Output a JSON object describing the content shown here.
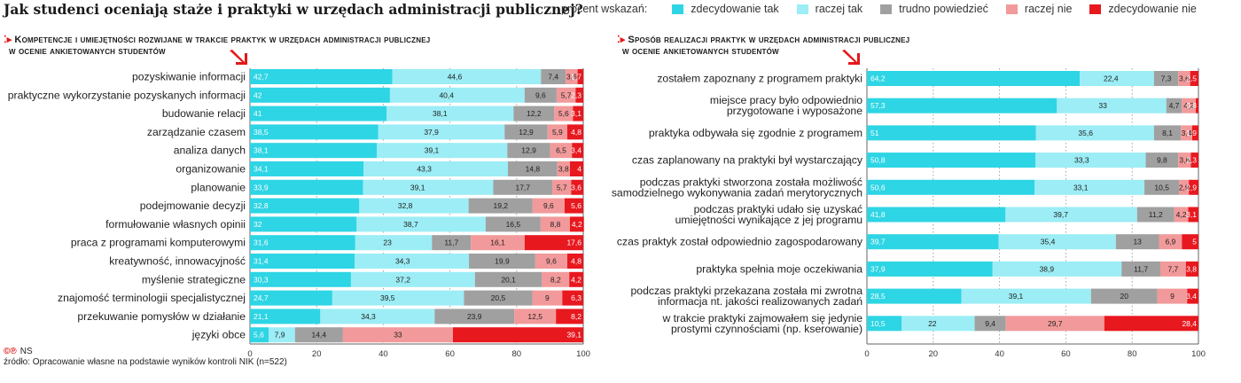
{
  "title": "Jak studenci oceniają staże i praktyki w urzędach administracji publicznej?",
  "legend": {
    "label": "procent wskazań:",
    "items": [
      {
        "name": "zdecydowanie tak",
        "color": "#2ed5e4"
      },
      {
        "name": "raczej tak",
        "color": "#9cedf5"
      },
      {
        "name": "trudno powiedzieć",
        "color": "#a0a0a0"
      },
      {
        "name": "raczej nie",
        "color": "#f29a9b"
      },
      {
        "name": "zdecydowanie nie",
        "color": "#e8181f"
      }
    ]
  },
  "footer": {
    "credit": "NS",
    "source": "źródło: Opracowanie własne na podstawie wyników kontroli NIK (n=522)"
  },
  "chart_data": [
    {
      "type": "bar",
      "stacked": true,
      "orientation": "horizontal",
      "title": "Kompetencje i umiejętności rozwijane w trakcie praktyk w urzędach administracji publicznej w ocenie ankietowanych studentów",
      "title_lines": [
        "Kompetencje i umiejętności rozwijane w trakcie praktyk w urzędach administracji publicznej",
        "w ocenie ankietowanych studentów"
      ],
      "xlim": [
        0,
        100
      ],
      "xticks": [
        "0",
        "20",
        "40",
        "60",
        "80",
        "100"
      ],
      "categories": [
        "pozyskiwanie informacji",
        "praktyczne wykorzystanie pozyskanych informacji",
        "budowanie relacji",
        "zarządzanie czasem",
        "analiza danych",
        "organizowanie",
        "planowanie",
        "podejmowanie decyzji",
        "formułowanie własnych opinii",
        "praca z programami komputerowymi",
        "kreatywność, innowacyjność",
        "myślenie strategiczne",
        "znajomość terminologii specjalistycznej",
        "przekuwanie pomysłów w działanie",
        "języki obce"
      ],
      "series": [
        {
          "name": "zdecydowanie tak",
          "values": [
            42.7,
            42,
            41,
            38.5,
            38.1,
            34.1,
            33.9,
            32.8,
            32,
            31.6,
            31.4,
            30.3,
            24.7,
            21.1,
            5.6
          ]
        },
        {
          "name": "raczej tak",
          "values": [
            44.6,
            40.4,
            38.1,
            37.9,
            39.1,
            43.3,
            39.1,
            32.8,
            38.7,
            23,
            34.3,
            37.2,
            39.5,
            34.3,
            7.9
          ]
        },
        {
          "name": "trudno powiedzieć",
          "values": [
            7.4,
            9.6,
            12.2,
            12.9,
            12.9,
            14.8,
            17.7,
            19.2,
            16.5,
            11.7,
            19.9,
            20.1,
            20.5,
            23.9,
            14.4
          ]
        },
        {
          "name": "raczej nie",
          "values": [
            3.6,
            5.7,
            5.6,
            5.9,
            6.5,
            3.8,
            5.7,
            9.6,
            8.8,
            16.1,
            9.6,
            8.2,
            9,
            12.5,
            33
          ]
        },
        {
          "name": "zdecydowanie nie",
          "values": [
            1.7,
            2.3,
            3.1,
            4.8,
            3.4,
            4,
            3.6,
            5.6,
            4.2,
            17.6,
            4.8,
            4.2,
            6.3,
            8.2,
            39.1
          ]
        }
      ]
    },
    {
      "type": "bar",
      "stacked": true,
      "orientation": "horizontal",
      "title": "Sposób realizacji praktyk w urzędach administracji publicznej w ocenie ankietowanych studentów",
      "title_lines": [
        "Sposób realizacji praktyk w urzędach administracji publicznej",
        "w ocenie ankietowanych studentów"
      ],
      "xlim": [
        0,
        100
      ],
      "xticks": [
        "0",
        "20",
        "40",
        "60",
        "80",
        "100"
      ],
      "categories": [
        [
          "zostałem zapoznany z programem praktyki"
        ],
        [
          "miejsce pracy było odpowiednio",
          "przygotowane i wyposażone"
        ],
        [
          "praktyka odbywała się zgodnie z programem"
        ],
        [
          "czas zaplanowany na praktyki był wystarczający"
        ],
        [
          "podczas praktyki stworzona została możliwość",
          "samodzielnego wykonywania zadań merytorycznych"
        ],
        [
          "podczas praktyki udało się uzyskać",
          "umiejętności wynikające z jej programu"
        ],
        [
          "czas praktyk został odpowiednio zagospodarowany"
        ],
        [
          "praktyka spełnia moje oczekiwania"
        ],
        [
          "podczas praktyki przekazana została mi zwrotna",
          "informacja nt. jakości realizowanych zadań"
        ],
        [
          "w trakcie praktyki zajmowałem się jedynie",
          "prostymi czynnościami (np. kserowanie)"
        ]
      ],
      "series": [
        {
          "name": "zdecydowanie tak",
          "values": [
            64.2,
            57.3,
            51,
            50.8,
            50.6,
            41.8,
            39.7,
            37.9,
            28.5,
            10.5
          ]
        },
        {
          "name": "raczej tak",
          "values": [
            22.4,
            33,
            35.6,
            33.3,
            33.1,
            39.7,
            35.4,
            38.9,
            39.1,
            22
          ]
        },
        {
          "name": "trudno powiedzieć",
          "values": [
            7.3,
            4.7,
            8.1,
            9.8,
            10.5,
            11.2,
            13,
            11.7,
            20,
            9.4
          ]
        },
        {
          "name": "raczej nie",
          "values": [
            3.6,
            4.2,
            3.4,
            3.8,
            2.9,
            4.2,
            6.9,
            7.7,
            9,
            29.7
          ]
        },
        {
          "name": "zdecydowanie nie",
          "values": [
            2.5,
            0.8,
            1.9,
            2.3,
            2.9,
            3.1,
            5,
            3.8,
            3.4,
            28.4
          ]
        }
      ]
    }
  ]
}
